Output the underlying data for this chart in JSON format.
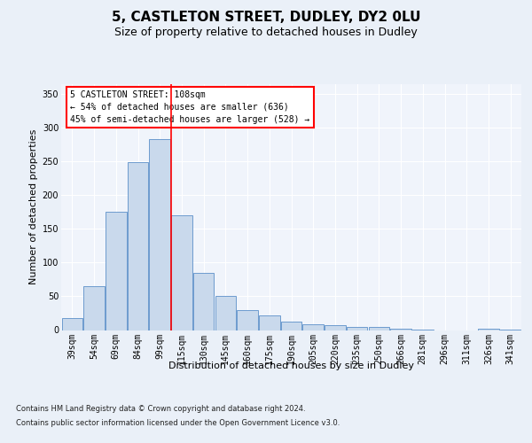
{
  "title1": "5, CASTLETON STREET, DUDLEY, DY2 0LU",
  "title2": "Size of property relative to detached houses in Dudley",
  "xlabel": "Distribution of detached houses by size in Dudley",
  "ylabel": "Number of detached properties",
  "categories": [
    "39sqm",
    "54sqm",
    "69sqm",
    "84sqm",
    "99sqm",
    "115sqm",
    "130sqm",
    "145sqm",
    "160sqm",
    "175sqm",
    "190sqm",
    "205sqm",
    "220sqm",
    "235sqm",
    "250sqm",
    "266sqm",
    "281sqm",
    "296sqm",
    "311sqm",
    "326sqm",
    "341sqm"
  ],
  "values": [
    18,
    65,
    175,
    249,
    283,
    170,
    85,
    50,
    30,
    22,
    13,
    8,
    7,
    5,
    5,
    2,
    1,
    0,
    0,
    2,
    1
  ],
  "bar_color": "#c9d9ec",
  "bar_edge_color": "#5b8fc9",
  "vline_x": 4.5,
  "vline_color": "red",
  "annotation_text1": "5 CASTLETON STREET: 108sqm",
  "annotation_text2": "← 54% of detached houses are smaller (636)",
  "annotation_text3": "45% of semi-detached houses are larger (528) →",
  "annotation_box_color": "red",
  "ylim": [
    0,
    365
  ],
  "yticks": [
    0,
    50,
    100,
    150,
    200,
    250,
    300,
    350
  ],
  "footnote1": "Contains HM Land Registry data © Crown copyright and database right 2024.",
  "footnote2": "Contains public sector information licensed under the Open Government Licence v3.0.",
  "bg_color": "#eaf0f8",
  "plot_bg_color": "#f0f4fb",
  "grid_color": "#ffffff",
  "title_fontsize": 11,
  "subtitle_fontsize": 9,
  "tick_fontsize": 7,
  "ylabel_fontsize": 8,
  "xlabel_fontsize": 8,
  "footnote_fontsize": 6
}
